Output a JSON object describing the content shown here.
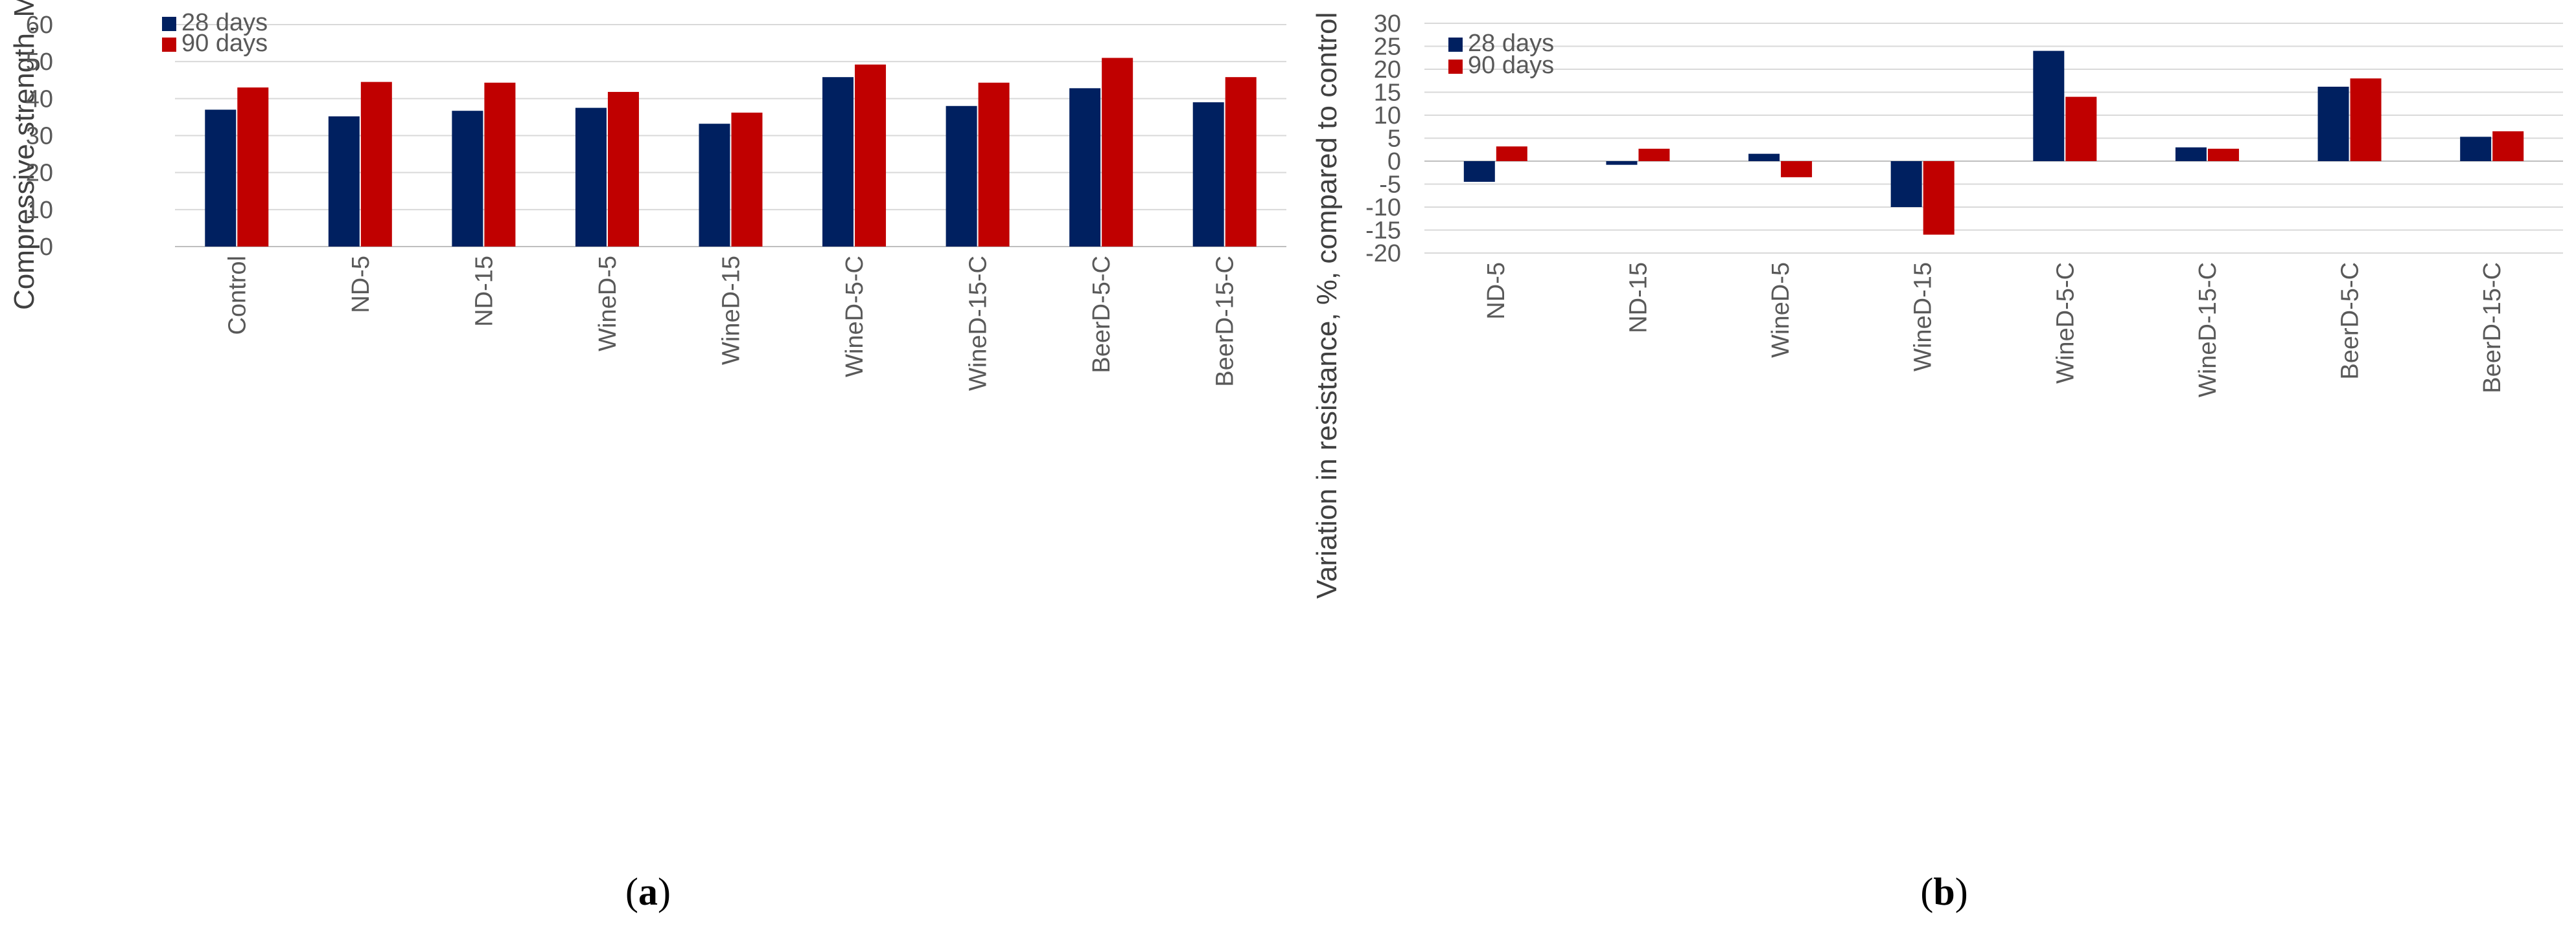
{
  "colors": {
    "series_28": "#002060",
    "series_90": "#C00000"
  },
  "chart_data": [
    {
      "id": "a",
      "type": "bar",
      "panel_label": "a",
      "ylabel": "Compressive strength, Mpa",
      "xlabel": "",
      "ylim": [
        0,
        60
      ],
      "yticks": [
        "0",
        "10",
        "20",
        "30",
        "40",
        "50",
        "60"
      ],
      "legend_position": "top-left",
      "categories": [
        "Control",
        "ND-5",
        "ND-15",
        "WineD-5",
        "WineD-15",
        "WineD-5-C",
        "WineD-15-C",
        "BeerD-5-C",
        "BeerD-15-C"
      ],
      "series": [
        {
          "name": "28 days",
          "values": [
            37,
            35.2,
            36.7,
            37.5,
            33.2,
            45.8,
            38,
            42.8,
            39
          ]
        },
        {
          "name": "90 days",
          "values": [
            43,
            44.5,
            44.3,
            41.8,
            36.2,
            49.2,
            44.3,
            51,
            45.8
          ]
        }
      ]
    },
    {
      "id": "b",
      "type": "bar",
      "panel_label": "b",
      "ylabel": "Variation in resistance, %, compared to control",
      "xlabel": "",
      "ylim": [
        -20,
        30
      ],
      "yticks": [
        "-20",
        "-15",
        "-10",
        "-5",
        "0",
        "5",
        "10",
        "15",
        "20",
        "25",
        "30"
      ],
      "legend_position": "top-left",
      "categories": [
        "ND-5",
        "ND-15",
        "WineD-5",
        "WineD-15",
        "WineD-5-C",
        "WineD-15-C",
        "BeerD-5-C",
        "BeerD-15-C"
      ],
      "series": [
        {
          "name": "28 days",
          "values": [
            -4.5,
            -0.8,
            1.6,
            -10,
            24,
            3,
            16.2,
            5.3
          ]
        },
        {
          "name": "90 days",
          "values": [
            3.2,
            2.7,
            -3.5,
            -16,
            14,
            2.7,
            18,
            6.5
          ]
        }
      ]
    }
  ]
}
